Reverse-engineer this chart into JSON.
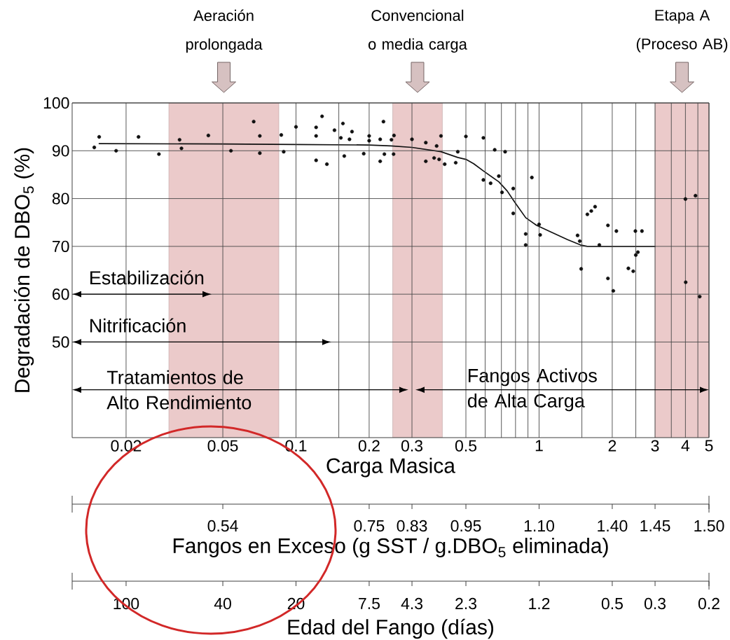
{
  "chart_data": [
    {
      "type": "scatter",
      "xlabel": "Carga Masica",
      "ylabel": "Degradación de DBO$_{5}$ (%)",
      "xlim": [
        0.012,
        5
      ],
      "xticks": [
        0.02,
        0.05,
        0.1,
        {
          "value": 0.15,
          "label": null
        },
        0.2,
        0.3,
        0.5,
        {
          "value": 0.6,
          "label": null
        },
        {
          "value": 0.7,
          "label": null
        },
        {
          "value": 0.8,
          "label": null
        },
        {
          "value": 0.9,
          "label": null
        },
        1,
        {
          "value": 1.5,
          "label": null
        },
        2,
        {
          "value": 2.5,
          "label": null
        },
        3,
        {
          "value": 3.5,
          "label": null
        },
        4,
        {
          "value": 4.5,
          "label": null
        },
        5
      ],
      "ylim": [
        30,
        100
      ],
      "yticks": [
        50,
        60,
        70,
        80,
        90,
        100
      ],
      "log": "x",
      "grid": true,
      "marker": "circle",
      "series": [
        {
          "type": "line",
          "color": "#111111",
          "marker": "none",
          "x": [
            0.0155,
            0.05,
            0.1,
            0.2,
            0.246,
            0.3,
            0.395,
            0.463,
            0.5,
            0.538,
            0.593,
            0.683,
            0.739,
            0.795,
            0.881,
            0.976,
            1.13,
            1.31,
            1.48,
            1.58,
            3
          ],
          "values": [
            91.5,
            91.4,
            91.3,
            91.2,
            91.0,
            90.7,
            89.8,
            88.6,
            88.2,
            87.3,
            85.7,
            83.5,
            81.6,
            79.2,
            76.0,
            74.4,
            72.9,
            71.4,
            70.3,
            70.0,
            70.0
          ]
        },
        {
          "type": "scatter",
          "color": "#111111",
          "x": [
            0.0148,
            0.0155,
            0.0182,
            0.0225,
            0.0273,
            0.0332,
            0.0338,
            0.0436,
            0.054,
            0.067,
            0.071,
            0.071,
            0.087,
            0.089,
            0.1,
            0.121,
            0.121,
            0.121,
            0.128,
            0.134,
            0.144,
            0.153,
            0.156,
            0.158,
            0.166,
            0.17,
            0.19,
            0.2,
            0.2,
            0.222,
            0.222,
            0.229,
            0.231,
            0.247,
            0.253,
            0.252,
            0.3,
            0.342,
            0.342,
            0.37,
            0.379,
            0.388,
            0.395,
            0.409,
            0.454,
            0.463,
            0.5,
            0.59,
            0.59,
            0.632,
            0.657,
            0.683,
            0.704,
            0.725,
            0.783,
            0.783,
            0.881,
            0.881,
            0.934,
            1.0,
            1.01,
            1.44,
            1.47,
            1.49,
            1.58,
            1.64,
            1.7,
            1.77,
            1.92,
            1.92,
            2.02,
            2.08,
            2.33,
            2.44,
            2.49,
            2.5,
            2.55,
            2.65,
            4.0,
            4.4,
            4.01,
            4.58
          ],
          "values": [
            90.7,
            92.9,
            90.0,
            92.9,
            89.3,
            92.3,
            90.5,
            93.2,
            90.0,
            96.1,
            93.1,
            89.5,
            93.3,
            89.8,
            95.0,
            94.9,
            93.1,
            88.0,
            97.2,
            87.2,
            94.3,
            92.7,
            95.7,
            88.9,
            92.4,
            94.0,
            89.4,
            93.1,
            92.1,
            92.4,
            87.8,
            96.1,
            89.3,
            92.3,
            93.2,
            89.3,
            92.4,
            91.7,
            87.8,
            88.5,
            91.0,
            88.2,
            93.1,
            87.2,
            87.5,
            89.8,
            93.0,
            92.7,
            83.9,
            83.2,
            90.2,
            84.7,
            81.3,
            89.8,
            82.1,
            76.9,
            72.6,
            70.3,
            84.4,
            74.6,
            72.4,
            72.3,
            71.1,
            65.3,
            76.7,
            77.4,
            78.3,
            70.3,
            74.4,
            63.3,
            60.7,
            73.2,
            65.4,
            64.8,
            73.2,
            68.2,
            68.8,
            73.2,
            79.9,
            80.6,
            62.5,
            59.5
          ]
        }
      ],
      "bands": [
        {
          "axis": "x",
          "from": 0.03,
          "to": 0.085,
          "color": "#ebcaca"
        },
        {
          "axis": "x",
          "from": 0.25,
          "to": 0.4,
          "color": "#ebcaca"
        },
        {
          "axis": "x",
          "from": 3,
          "to": 5,
          "color": "#ebcaca"
        }
      ],
      "annotations": [
        "Aeración prolongada",
        "Convencional o media carga",
        "Etapa A (Proceso AB)",
        "Estabilización",
        "Nitrificación",
        "Tratamientos de Alto Rendimiento",
        "Fangos Activos de Alta Carga"
      ]
    },
    {
      "type": "other",
      "title": "Fangos en Exceso (g SST / g.DBO$_{5}$ eliminada)",
      "annotations": [
        "0.54",
        "0.75",
        "0.83",
        "0.95",
        "1.10",
        "1.40",
        "1.45",
        "1.50"
      ]
    },
    {
      "type": "other",
      "title": "Edad del Fango (días)",
      "annotations": [
        "100",
        "40",
        "20",
        "7.5",
        "4.3",
        "2.3",
        "1.2",
        "0.5",
        "0.3",
        "0.2"
      ]
    }
  ]
}
